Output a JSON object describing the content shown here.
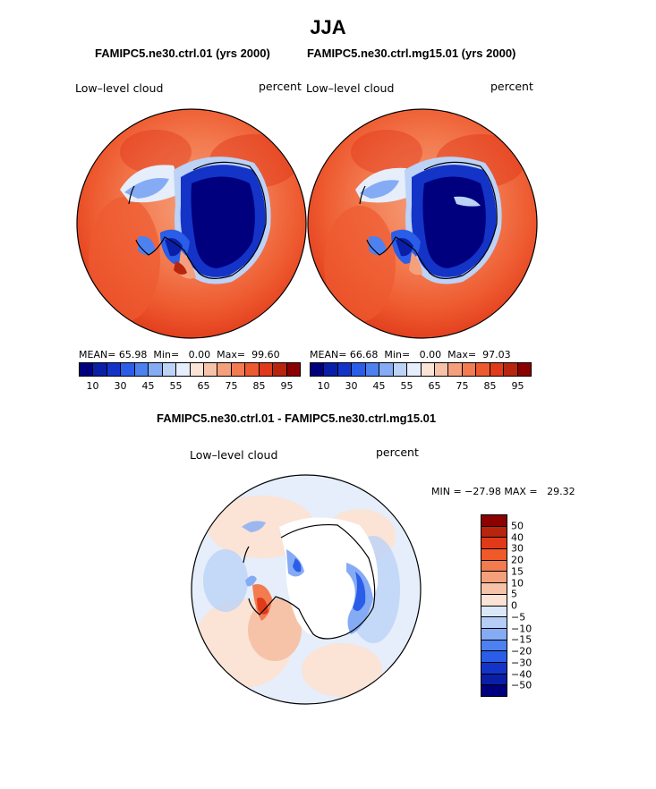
{
  "title": "JJA",
  "panels": [
    {
      "title": "FAMIPC5.ne30.ctrl.01 (yrs 2000)",
      "left_label": "Low–level cloud",
      "right_label": "percent",
      "stats": {
        "mean_label": "MEAN=",
        "mean": "65.98",
        "min_label": "Min=",
        "min": "0.00",
        "max_label": "Max=",
        "max": "99.60"
      }
    },
    {
      "title": "FAMIPC5.ne30.ctrl.mg15.01 (yrs 2000)",
      "left_label": "Low–level cloud",
      "right_label": "percent",
      "stats": {
        "mean_label": "MEAN=",
        "mean": "66.68",
        "min_label": "Min=",
        "min": "0.00",
        "max_label": "Max=",
        "max": "97.03"
      }
    },
    {
      "title": "FAMIPC5.ne30.ctrl.01 - FAMIPC5.ne30.ctrl.mg15.01",
      "left_label": "Low–level cloud",
      "right_label": "percent",
      "minmax": "MIN = −27.98 MAX =   29.32"
    }
  ],
  "colorbar_abs": {
    "tick_labels": [
      "10",
      "30",
      "45",
      "55",
      "65",
      "75",
      "85",
      "95"
    ],
    "colors": [
      "#00007f",
      "#0a1fa8",
      "#1434c8",
      "#2a5ee8",
      "#4d81f0",
      "#85abf5",
      "#bcd2f7",
      "#e5eefa",
      "#fbe3d6",
      "#f7c3a8",
      "#f5a07c",
      "#f37b50",
      "#ee5a30",
      "#e03a1a",
      "#b8250e",
      "#8b0000"
    ]
  },
  "colorbar_diff": {
    "tick_labels": [
      "50",
      "40",
      "30",
      "20",
      "15",
      "10",
      "5",
      "0",
      "−5",
      "−10",
      "−15",
      "−20",
      "−30",
      "−40",
      "−50"
    ],
    "colors": [
      "#8b0000",
      "#b8250e",
      "#e03a1a",
      "#f0592a",
      "#f37b50",
      "#f5a07c",
      "#f7c3a8",
      "#fbe3d6",
      "#dbe8fa",
      "#b5cdf7",
      "#85abf5",
      "#4d81f0",
      "#2a5ee8",
      "#1434c8",
      "#0a1fa8",
      "#00007f"
    ]
  }
}
